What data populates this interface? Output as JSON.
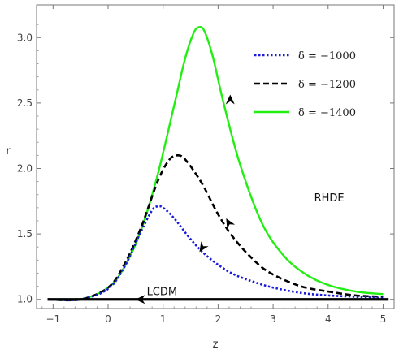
{
  "chart_data": {
    "type": "line",
    "xlabel": "z",
    "ylabel": "r",
    "xlim": [
      -1.3,
      5.2
    ],
    "ylim": [
      0.93,
      3.25
    ],
    "xticks": [
      -1,
      0,
      1,
      2,
      3,
      4,
      5
    ],
    "xtick_labels": [
      "−1",
      "0",
      "1",
      "2",
      "3",
      "4",
      "5"
    ],
    "yticks": [
      1.0,
      1.5,
      2.0,
      2.5,
      3.0
    ],
    "ytick_labels": [
      "1.0",
      "1.5",
      "2.0",
      "2.5",
      "3.0"
    ],
    "grid": false,
    "legend_position": "top-right",
    "series": [
      {
        "name": "δ = −1000",
        "color": "#1a1adb",
        "style": "dotted",
        "x": [
          -1.1,
          -0.5,
          0.0,
          0.3,
          0.6,
          0.8,
          0.9,
          1.0,
          1.2,
          1.5,
          1.8,
          2.2,
          2.6,
          3.0,
          3.5,
          4.0,
          4.5,
          5.0
        ],
        "y": [
          1.0,
          1.0,
          1.08,
          1.25,
          1.52,
          1.68,
          1.71,
          1.7,
          1.62,
          1.46,
          1.33,
          1.21,
          1.14,
          1.09,
          1.05,
          1.03,
          1.02,
          1.01
        ]
      },
      {
        "name": "δ = −1200",
        "color": "#000000",
        "style": "dashed",
        "x": [
          -1.1,
          -0.5,
          0.0,
          0.3,
          0.6,
          0.9,
          1.1,
          1.25,
          1.4,
          1.7,
          2.0,
          2.3,
          2.7,
          3.0,
          3.5,
          4.0,
          4.5,
          5.0
        ],
        "y": [
          1.0,
          1.0,
          1.09,
          1.27,
          1.55,
          1.9,
          2.06,
          2.1,
          2.07,
          1.89,
          1.65,
          1.46,
          1.28,
          1.19,
          1.1,
          1.06,
          1.03,
          1.02
        ]
      },
      {
        "name": "δ = −1400",
        "color": "#22ee11",
        "style": "solid",
        "x": [
          -1.1,
          -0.5,
          0.0,
          0.3,
          0.6,
          0.9,
          1.2,
          1.4,
          1.55,
          1.65,
          1.75,
          1.9,
          2.1,
          2.4,
          2.8,
          3.2,
          3.6,
          4.0,
          4.5,
          5.0
        ],
        "y": [
          1.0,
          1.0,
          1.09,
          1.25,
          1.53,
          1.95,
          2.48,
          2.84,
          3.03,
          3.08,
          3.05,
          2.86,
          2.5,
          2.03,
          1.58,
          1.33,
          1.19,
          1.11,
          1.06,
          1.04
        ]
      },
      {
        "name": "LCDM",
        "color": "#000000",
        "style": "solid-thick",
        "x": [
          -1.1,
          5.1
        ],
        "y": [
          1.0,
          1.0
        ]
      }
    ],
    "annotations": [
      {
        "text": "LCDM",
        "x": 0.98,
        "y": 1.025
      },
      {
        "text": "RHDE",
        "x": 4.02,
        "y": 1.78
      }
    ],
    "arrows": [
      {
        "x": 0.6,
        "y": 1.0,
        "direction": "left"
      },
      {
        "x": 1.72,
        "y": 1.4,
        "direction": "down-left"
      },
      {
        "x": 2.2,
        "y": 1.58,
        "direction": "up-left"
      },
      {
        "x": 2.22,
        "y": 2.52,
        "direction": "up"
      }
    ]
  }
}
